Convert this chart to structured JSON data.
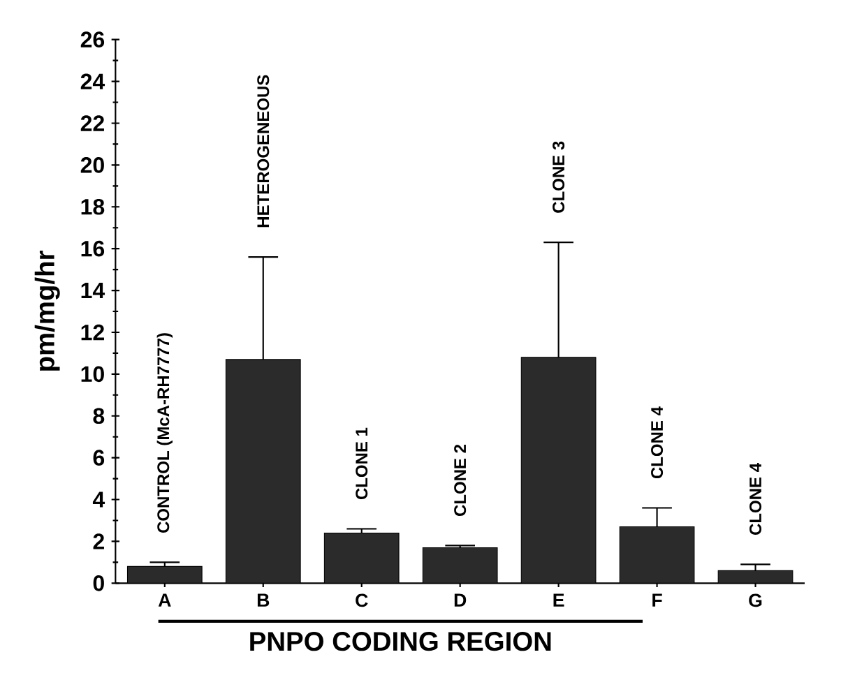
{
  "chart_data": {
    "type": "bar",
    "xlabel": "PNPO CODING REGION",
    "ylabel": "pm/mg/hr",
    "categories": [
      "A",
      "B",
      "C",
      "D",
      "E",
      "F",
      "G"
    ],
    "values": [
      0.8,
      10.7,
      2.4,
      1.7,
      10.8,
      2.7,
      0.6
    ],
    "errors": [
      0.2,
      4.9,
      0.2,
      0.1,
      5.5,
      0.9,
      0.3
    ],
    "color": "#2b2b2b",
    "ylim": [
      0,
      26
    ],
    "yticks": [
      0,
      2,
      4,
      6,
      8,
      10,
      12,
      14,
      16,
      18,
      20,
      22,
      24,
      26
    ],
    "annotations": [
      "CONTROL  (McA-RH7777)",
      "HETEROGENEOUS",
      "CLONE  1",
      "CLONE  2",
      "CLONE  3",
      "CLONE  4",
      "CLONE  4"
    ]
  }
}
